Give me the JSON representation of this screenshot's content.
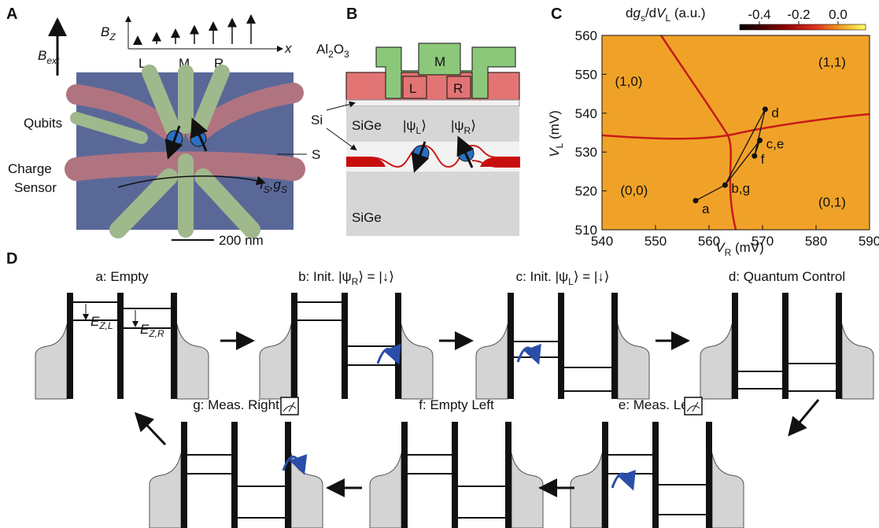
{
  "panel_a": {
    "letter": "A",
    "b_ext": [
      "B",
      "ext"
    ],
    "b_z": [
      "B",
      "Z"
    ],
    "x_axis": "x",
    "dots": [
      "L",
      "M",
      "R"
    ],
    "qubits": "Qubits",
    "charge_sensor": [
      "Charge",
      "Sensor"
    ],
    "s": "S",
    "current": [
      "I",
      "S",
      ",",
      "g",
      "S"
    ],
    "scale": "200 nm"
  },
  "panel_b": {
    "letter": "B",
    "al2o3": [
      "Al",
      "2",
      "O",
      "3"
    ],
    "gates": [
      "M",
      "L",
      "R"
    ],
    "si": "Si",
    "sige_top": "SiGe",
    "sige_bottom": "SiGe",
    "psi_l": [
      "|ψ",
      "L",
      "⟩"
    ],
    "psi_r": [
      "|ψ",
      "R",
      "⟩"
    ]
  },
  "panel_c": {
    "letter": "C",
    "colorbar_title": [
      "d",
      "g",
      "s",
      "/d",
      "V",
      "L",
      " (a.u.)"
    ],
    "colorbar_ticks": [
      -0.4,
      -0.2,
      {
        "value": 0,
        "label": "0.0"
      }
    ],
    "xlabel": [
      "V",
      "R",
      " (mV)"
    ],
    "ylabel": [
      "V",
      "L",
      " (mV)"
    ],
    "xlim": [
      540,
      590
    ],
    "xticks": [
      540,
      550,
      560,
      570,
      580,
      590
    ],
    "ylim": [
      510,
      560
    ],
    "yticks": [
      510,
      520,
      530,
      540,
      550,
      560
    ],
    "regions": [
      {
        "label": "(1,0)",
        "x": 545,
        "y": 547
      },
      {
        "label": "(1,1)",
        "x": 583,
        "y": 552
      },
      {
        "label": "(0,0)",
        "x": 546,
        "y": 519
      },
      {
        "label": "(0,1)",
        "x": 583,
        "y": 516
      }
    ],
    "points": [
      {
        "label": "a",
        "x": 557.5,
        "y": 517.5
      },
      {
        "label": "b,g",
        "x": 563,
        "y": 521.5
      },
      {
        "label": "f",
        "x": 568.5,
        "y": 529
      },
      {
        "label": "c,e",
        "x": 569.5,
        "y": 533
      },
      {
        "label": "d",
        "x": 570.5,
        "y": 541
      }
    ]
  },
  "panel_d": {
    "letter": "D",
    "ez_l": [
      "E",
      "Z,L"
    ],
    "ez_r": [
      "E",
      "Z,R"
    ],
    "steps": [
      {
        "title": [
          "a: Empty"
        ]
      },
      {
        "title": [
          "b: Init. |ψ",
          "R",
          "⟩ = |↓⟩"
        ]
      },
      {
        "title": [
          "c: Init. |ψ",
          "L",
          "⟩ = |↓⟩"
        ]
      },
      {
        "title": [
          "d: Quantum Control"
        ]
      },
      {
        "title": [
          "e: Meas. Left"
        ]
      },
      {
        "title": [
          "f: Empty Left"
        ]
      },
      {
        "title": [
          "g: Meas. Right"
        ]
      }
    ]
  }
}
